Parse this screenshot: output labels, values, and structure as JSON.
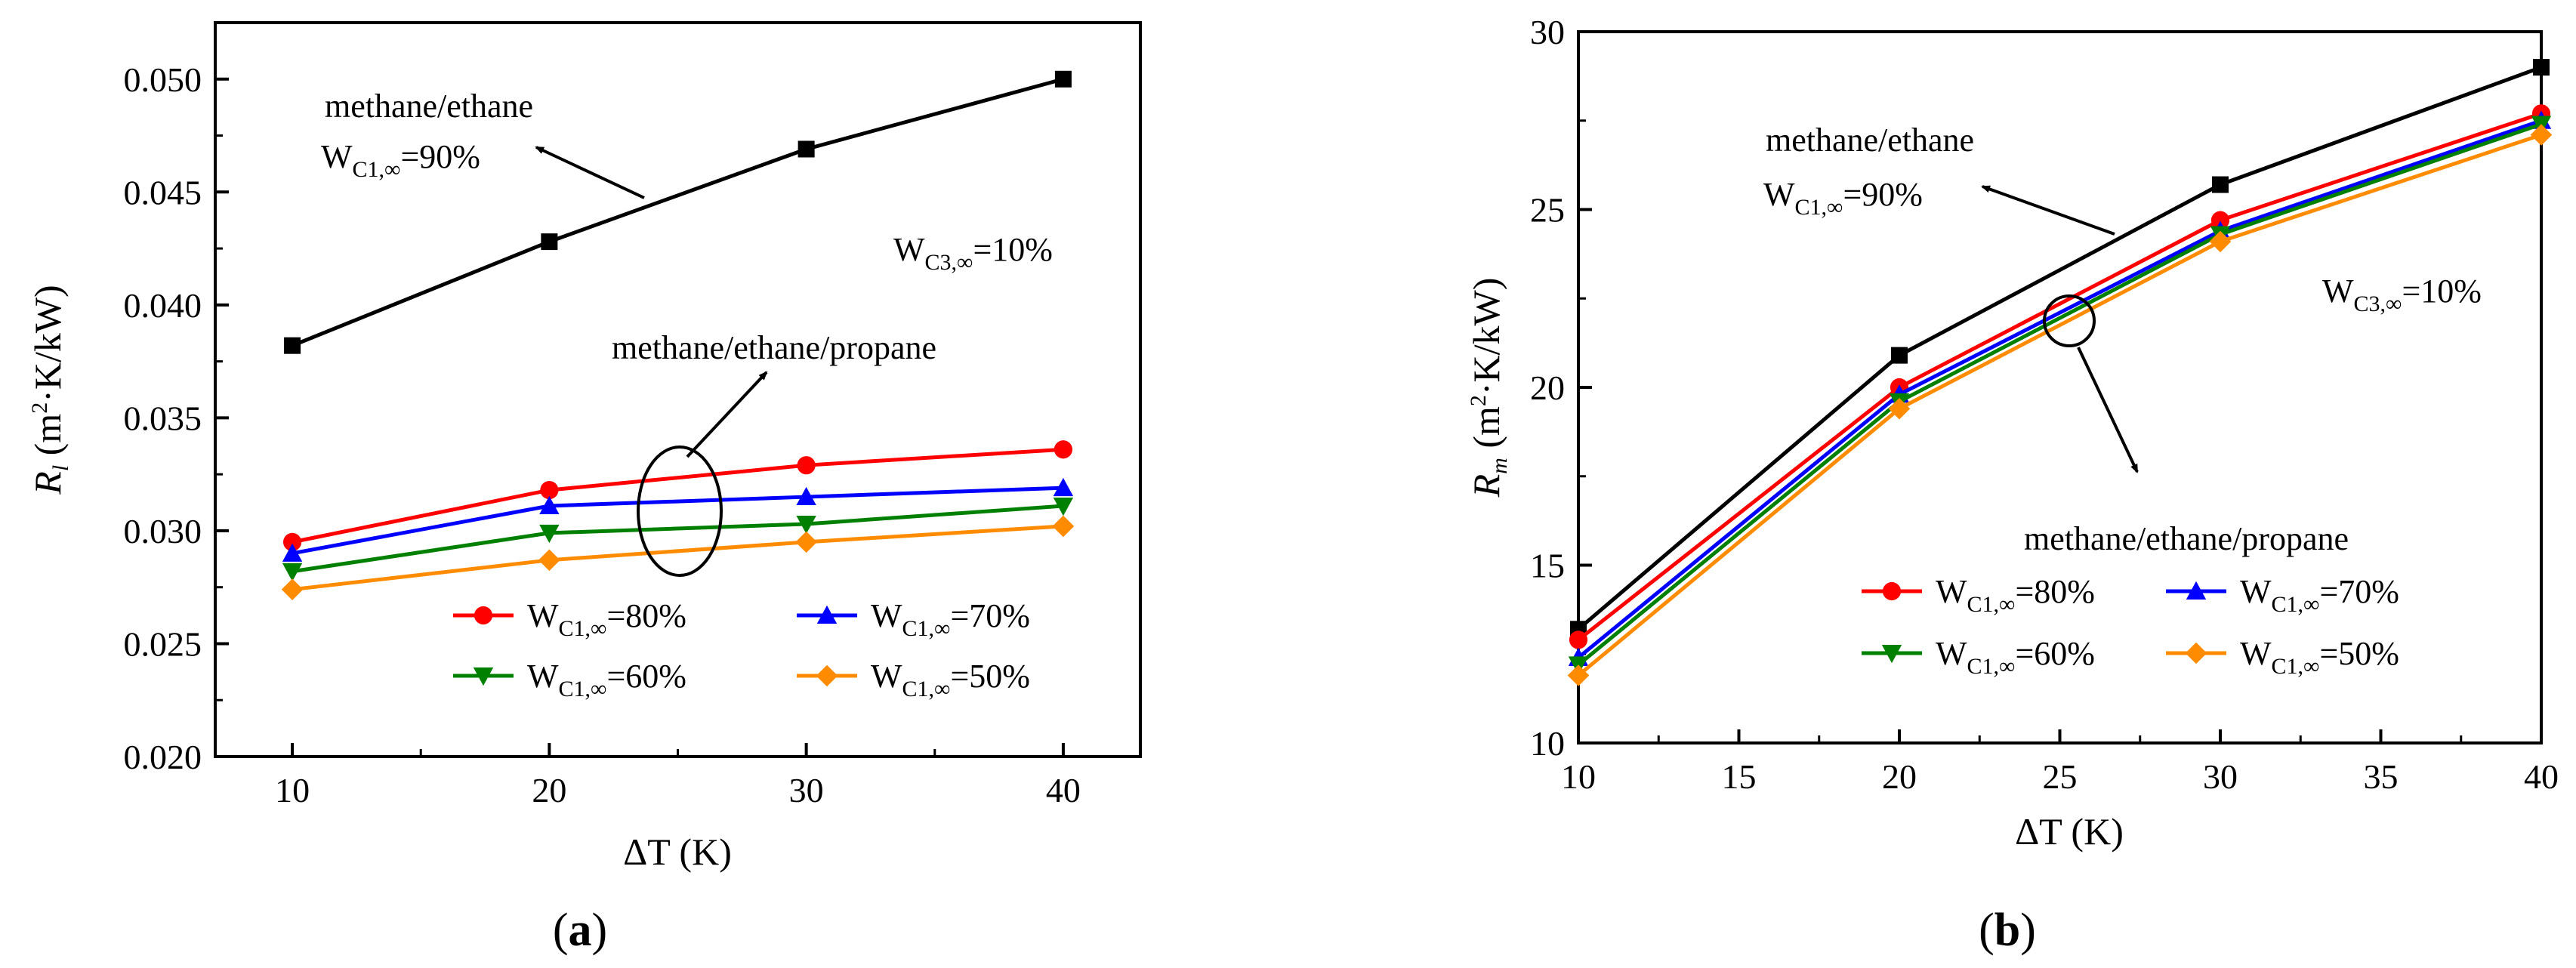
{
  "chart_data": [
    {
      "panel": "a",
      "type": "line",
      "caption_prefix": "(",
      "caption_letter": "a",
      "caption_suffix": ")",
      "x": [
        10,
        20,
        30,
        40
      ],
      "xlim": [
        7,
        43
      ],
      "xticks": [
        10,
        20,
        30,
        40
      ],
      "ylim": [
        0.02,
        0.0525
      ],
      "yticks": [
        "0.020",
        "0.025",
        "0.030",
        "0.035",
        "0.040",
        "0.045",
        "0.050"
      ],
      "xlabel": "ΔT (K)",
      "ylabel": {
        "sym": "R",
        "sub": "l",
        "unit_a": " (m",
        "sup": "2",
        "unit_b": "·K/kW)"
      },
      "series": [
        {
          "name": "methane/ethane WC1,∞=90%",
          "color": "#000000",
          "marker": "square",
          "values": [
            0.0382,
            0.0428,
            0.0469,
            0.05
          ]
        },
        {
          "name": "WC1,∞=80%",
          "color": "#ff0000",
          "marker": "circle",
          "values": [
            0.0295,
            0.0318,
            0.0329,
            0.0336
          ]
        },
        {
          "name": "WC1,∞=70%",
          "color": "#0000ff",
          "marker": "triangle-up",
          "values": [
            0.029,
            0.0311,
            0.0315,
            0.0319
          ]
        },
        {
          "name": "WC1,∞=60%",
          "color": "#008000",
          "marker": "triangle-down",
          "values": [
            0.0282,
            0.0299,
            0.0303,
            0.0311
          ]
        },
        {
          "name": "WC1,∞=50%",
          "color": "#ff8c00",
          "marker": "diamond",
          "values": [
            0.0274,
            0.0287,
            0.0295,
            0.0302
          ]
        }
      ],
      "annotations": {
        "binary_line1": "methane/ethane",
        "binary_w": "W",
        "binary_sub": "C1,∞",
        "binary_val": "=90%",
        "c3_w": "W",
        "c3_sub": "C3,∞",
        "c3_val": "=10%",
        "ternary": "methane/ethane/propane"
      },
      "legend": [
        {
          "w": "W",
          "sub": "C1,∞",
          "val": "=80%"
        },
        {
          "w": "W",
          "sub": "C1,∞",
          "val": "=70%"
        },
        {
          "w": "W",
          "sub": "C1,∞",
          "val": "=60%"
        },
        {
          "w": "W",
          "sub": "C1,∞",
          "val": "=50%"
        }
      ]
    },
    {
      "panel": "b",
      "type": "line",
      "caption_prefix": "(",
      "caption_letter": "b",
      "caption_suffix": ")",
      "x": [
        10,
        20,
        30,
        40
      ],
      "xlim": [
        10,
        40
      ],
      "xticks": [
        10,
        15,
        20,
        25,
        30,
        35,
        40
      ],
      "ylim": [
        10,
        30
      ],
      "yticks": [
        "10",
        "15",
        "20",
        "25",
        "30"
      ],
      "xlabel": "ΔT (K)",
      "ylabel": {
        "sym": "R",
        "sub": "m",
        "unit_a": " (m",
        "sup": "2",
        "unit_b": "·K/kW)"
      },
      "series": [
        {
          "name": "methane/ethane WC1,∞=90%",
          "color": "#000000",
          "marker": "square",
          "values": [
            13.2,
            20.9,
            25.7,
            29.0
          ]
        },
        {
          "name": "WC1,∞=80%",
          "color": "#ff0000",
          "marker": "circle",
          "values": [
            12.9,
            20.0,
            24.7,
            27.7
          ]
        },
        {
          "name": "WC1,∞=70%",
          "color": "#0000ff",
          "marker": "triangle-up",
          "values": [
            12.4,
            19.8,
            24.4,
            27.5
          ]
        },
        {
          "name": "WC1,∞=60%",
          "color": "#008000",
          "marker": "triangle-down",
          "values": [
            12.2,
            19.6,
            24.3,
            27.4
          ]
        },
        {
          "name": "WC1,∞=50%",
          "color": "#ff8c00",
          "marker": "diamond",
          "values": [
            11.9,
            19.4,
            24.1,
            27.1
          ]
        }
      ],
      "annotations": {
        "binary_line1": "methane/ethane",
        "binary_w": "W",
        "binary_sub": "C1,∞",
        "binary_val": "=90%",
        "c3_w": "W",
        "c3_sub": "C3,∞",
        "c3_val": "=10%",
        "ternary": "methane/ethane/propane"
      },
      "legend": [
        {
          "w": "W",
          "sub": "C1,∞",
          "val": "=80%"
        },
        {
          "w": "W",
          "sub": "C1,∞",
          "val": "=70%"
        },
        {
          "w": "W",
          "sub": "C1,∞",
          "val": "=60%"
        },
        {
          "w": "W",
          "sub": "C1,∞",
          "val": "=50%"
        }
      ]
    }
  ]
}
